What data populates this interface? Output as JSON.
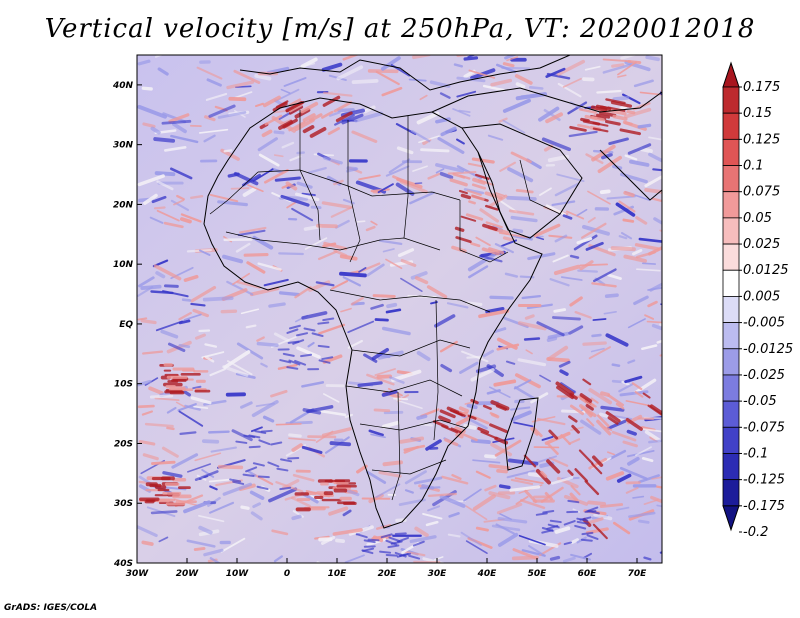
{
  "title": "Vertical velocity [m/s] at 250hPa, VT: 2020012018",
  "credit": "GrADS: IGES/COLA",
  "map": {
    "lat_ticks": [
      "40N",
      "30N",
      "20N",
      "10N",
      "EQ",
      "10S",
      "20S",
      "30S",
      "40S"
    ],
    "lon_ticks": [
      "30W",
      "20W",
      "10W",
      "0",
      "10E",
      "20E",
      "30E",
      "40E",
      "50E",
      "60E",
      "70E"
    ],
    "lat_range": [
      -40,
      45
    ],
    "lon_range": [
      -30,
      75
    ],
    "field_colors": {
      "strong_up": "#b01c22",
      "up": "#ee9a9a",
      "neutral": "#f3f0f6",
      "down": "#9a9ae8",
      "strong_down": "#3535c8",
      "coast": "#000000"
    }
  },
  "colorbar": {
    "levels": [
      "0.175",
      "0.15",
      "0.125",
      "0.1",
      "0.075",
      "0.05",
      "0.025",
      "0.0125",
      "0.005",
      "-0.005",
      "-0.0125",
      "-0.025",
      "-0.05",
      "-0.075",
      "-0.1",
      "-0.125",
      "-0.175",
      "-0.2"
    ],
    "colors": [
      "#a8161f",
      "#bd2a2e",
      "#d13a3b",
      "#e05555",
      "#e87474",
      "#f19a9a",
      "#f7bdbd",
      "#fbdcdc",
      "#ffffff",
      "#dcdcf7",
      "#bcbcf0",
      "#9c9ce8",
      "#7c7ce0",
      "#5c5cd6",
      "#4141c8",
      "#2c2cb4",
      "#1c1c9a",
      "#121282"
    ]
  }
}
